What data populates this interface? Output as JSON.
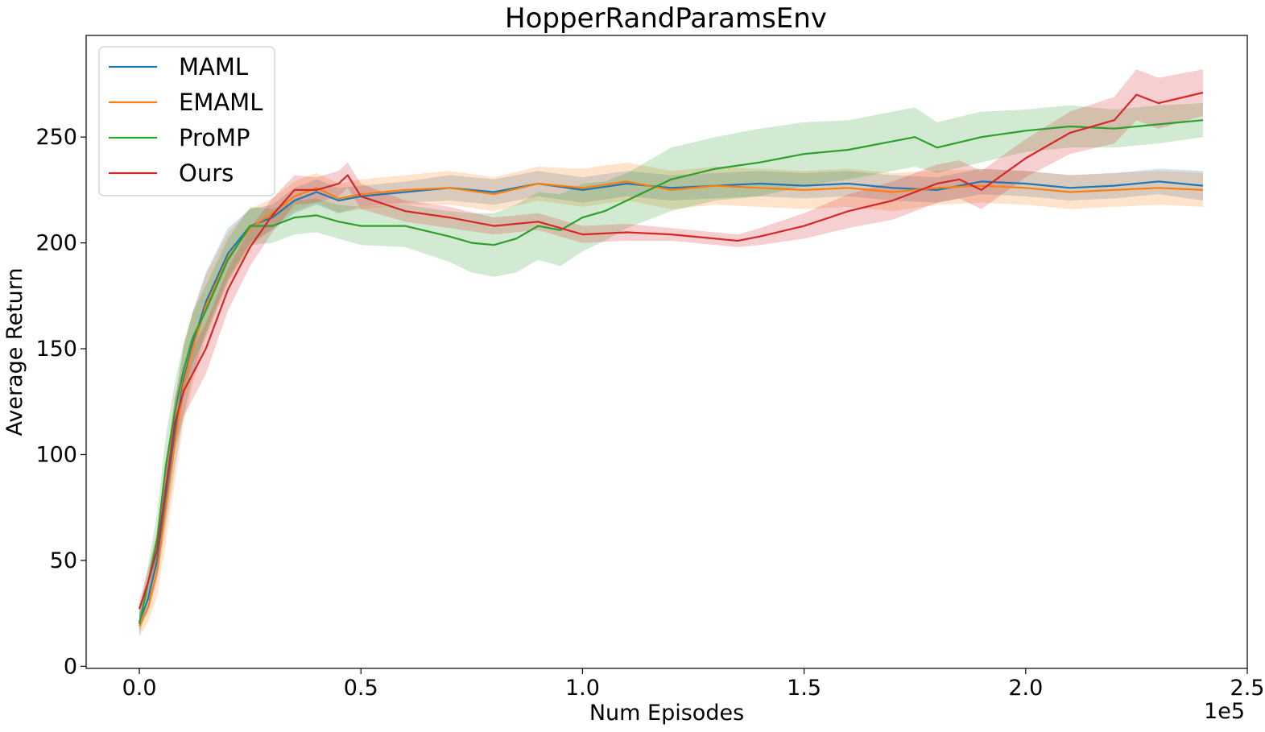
{
  "chart_data": {
    "type": "line",
    "title": "HopperRandParamsEnv",
    "xlabel": "Num Episodes",
    "ylabel": "Average Return",
    "x_offset_text": "1e5",
    "xlim": [
      -0.12,
      2.5
    ],
    "ylim": [
      -1,
      298
    ],
    "x_ticks": [
      0.0,
      0.5,
      1.0,
      1.5,
      2.0,
      2.5
    ],
    "x_tick_labels": [
      "0.0",
      "0.5",
      "1.0",
      "1.5",
      "2.0",
      "2.5"
    ],
    "y_ticks": [
      0,
      50,
      100,
      150,
      200,
      250
    ],
    "y_tick_labels": [
      "0",
      "50",
      "100",
      "150",
      "200",
      "250"
    ],
    "grid": false,
    "legend_position": "top-left",
    "series": [
      {
        "name": "MAML",
        "color": "#1f77b4",
        "x": [
          0.0,
          0.02,
          0.04,
          0.06,
          0.08,
          0.1,
          0.12,
          0.15,
          0.2,
          0.25,
          0.3,
          0.35,
          0.4,
          0.45,
          0.5,
          0.6,
          0.7,
          0.8,
          0.9,
          1.0,
          1.1,
          1.2,
          1.3,
          1.4,
          1.5,
          1.6,
          1.7,
          1.8,
          1.9,
          2.0,
          2.1,
          2.2,
          2.3,
          2.4
        ],
        "y": [
          21,
          32,
          50,
          80,
          110,
          135,
          152,
          172,
          195,
          208,
          212,
          220,
          224,
          220,
          222,
          224,
          226,
          224,
          228,
          225,
          228,
          226,
          227,
          228,
          227,
          228,
          226,
          225,
          229,
          228,
          226,
          227,
          229,
          227
        ],
        "band": [
          4,
          6,
          10,
          14,
          16,
          16,
          15,
          14,
          12,
          8,
          6,
          6,
          6,
          6,
          5,
          5,
          6,
          6,
          6,
          6,
          6,
          6,
          6,
          6,
          6,
          6,
          6,
          6,
          6,
          6,
          6,
          6,
          6,
          7
        ]
      },
      {
        "name": "EMAML",
        "color": "#ff7f0e",
        "x": [
          0.0,
          0.02,
          0.04,
          0.06,
          0.08,
          0.1,
          0.12,
          0.15,
          0.2,
          0.25,
          0.3,
          0.35,
          0.4,
          0.45,
          0.5,
          0.6,
          0.7,
          0.8,
          0.9,
          1.0,
          1.1,
          1.2,
          1.3,
          1.4,
          1.5,
          1.6,
          1.7,
          1.8,
          1.9,
          2.0,
          2.1,
          2.2,
          2.3,
          2.4
        ],
        "y": [
          19,
          28,
          45,
          75,
          105,
          133,
          150,
          170,
          193,
          207,
          214,
          222,
          226,
          221,
          223,
          225,
          226,
          223,
          228,
          226,
          229,
          225,
          227,
          226,
          225,
          226,
          224,
          226,
          227,
          226,
          224,
          225,
          226,
          225
        ],
        "band": [
          5,
          7,
          12,
          16,
          18,
          18,
          17,
          15,
          12,
          9,
          7,
          7,
          7,
          7,
          7,
          7,
          8,
          8,
          8,
          9,
          9,
          9,
          9,
          9,
          9,
          9,
          9,
          8,
          8,
          8,
          8,
          8,
          8,
          8
        ]
      },
      {
        "name": "ProMP",
        "color": "#2ca02c",
        "x": [
          0.0,
          0.02,
          0.04,
          0.06,
          0.08,
          0.1,
          0.12,
          0.15,
          0.2,
          0.25,
          0.3,
          0.35,
          0.4,
          0.45,
          0.5,
          0.6,
          0.7,
          0.75,
          0.8,
          0.85,
          0.9,
          0.95,
          1.0,
          1.05,
          1.1,
          1.2,
          1.3,
          1.4,
          1.5,
          1.6,
          1.7,
          1.75,
          1.8,
          1.9,
          2.0,
          2.1,
          2.2,
          2.3,
          2.4
        ],
        "y": [
          20,
          40,
          60,
          95,
          120,
          140,
          155,
          168,
          192,
          208,
          208,
          212,
          213,
          210,
          208,
          208,
          203,
          200,
          199,
          202,
          208,
          206,
          212,
          215,
          220,
          230,
          235,
          238,
          242,
          244,
          248,
          250,
          245,
          250,
          253,
          255,
          254,
          256,
          258
        ],
        "band": [
          6,
          8,
          12,
          14,
          14,
          13,
          12,
          12,
          10,
          9,
          8,
          8,
          8,
          8,
          9,
          10,
          12,
          14,
          15,
          16,
          16,
          17,
          16,
          14,
          13,
          15,
          15,
          16,
          15,
          14,
          14,
          14,
          12,
          12,
          10,
          10,
          9,
          9,
          8
        ]
      },
      {
        "name": "Ours",
        "color": "#d62728",
        "x": [
          0.0,
          0.02,
          0.04,
          0.06,
          0.08,
          0.1,
          0.12,
          0.15,
          0.2,
          0.25,
          0.3,
          0.35,
          0.4,
          0.45,
          0.47,
          0.5,
          0.6,
          0.7,
          0.8,
          0.9,
          1.0,
          1.1,
          1.2,
          1.3,
          1.35,
          1.4,
          1.5,
          1.6,
          1.7,
          1.8,
          1.85,
          1.9,
          2.0,
          2.1,
          2.2,
          2.25,
          2.3,
          2.4
        ],
        "y": [
          27,
          40,
          55,
          85,
          115,
          130,
          138,
          150,
          178,
          198,
          213,
          225,
          225,
          228,
          232,
          222,
          215,
          212,
          208,
          210,
          204,
          205,
          204,
          202,
          201,
          203,
          208,
          215,
          220,
          228,
          230,
          225,
          240,
          252,
          258,
          270,
          266,
          271
        ],
        "band": [
          4,
          6,
          8,
          10,
          12,
          12,
          12,
          12,
          10,
          9,
          8,
          7,
          6,
          6,
          6,
          6,
          5,
          5,
          4,
          4,
          4,
          4,
          3,
          3,
          3,
          4,
          6,
          8,
          9,
          9,
          9,
          9,
          9,
          10,
          11,
          12,
          12,
          11
        ]
      }
    ]
  }
}
